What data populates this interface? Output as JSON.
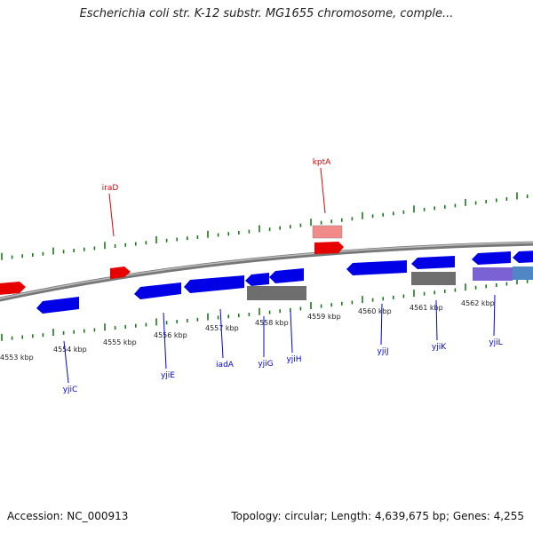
{
  "title": "Escherichia coli str. K-12 substr. MG1655 chromosome, comple...",
  "footer": {
    "accession": "Accession: NC_000913",
    "topology": "Topology: circular; Length: 4,639,675 bp; Genes: 4,255"
  },
  "colors": {
    "forward": "#e60000",
    "reverse": "#0000e6",
    "tick": "#1a7a1a",
    "backbone": "#888888",
    "grey_feature": "#6e6e6e",
    "pink_feature": "#f28a8a",
    "purple_feature": "#7a62d4",
    "steel_feature": "#4f86c6"
  },
  "scale_labels": [
    "4553 kbp",
    "4554 kbp",
    "4555 kbp",
    "4556 kbp",
    "4557 kbp",
    "4558 kbp",
    "4559 kbp",
    "4560 kbp",
    "4561 kbp",
    "4562 kbp"
  ],
  "gene_labels_top": [
    "iraD",
    "kptA"
  ],
  "gene_labels_bottom": [
    "yjiC",
    "yjiE",
    "iadA",
    "yjiG",
    "yjiH",
    "yjiJ",
    "yjiK",
    "yjiL"
  ]
}
